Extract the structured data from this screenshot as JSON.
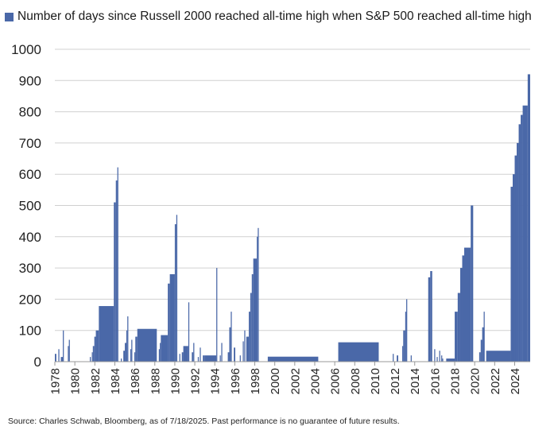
{
  "legend": {
    "label": "Number of days since Russell 2000 reached all-time high when S&P 500 reached all-time high"
  },
  "source": "Source: Charles Schwab, Bloomberg, as of 7/18/2025. Past performance is no guarantee of future results.",
  "colors": {
    "bar": "#4a68a8",
    "grid": "#d0d0d0",
    "axis": "#999999"
  },
  "chart_data": {
    "type": "area",
    "title": "",
    "series": [
      {
        "name": "Number of days since Russell 2000 reached all-time high when S&P 500 reached all-time high"
      }
    ],
    "xlabel": "",
    "ylabel": "",
    "xlim": [
      1978.0,
      2025.55
    ],
    "ylim": [
      0,
      1000
    ],
    "yticks": [
      0,
      100,
      200,
      300,
      400,
      500,
      600,
      700,
      800,
      900,
      1000
    ],
    "xtick_labels": [
      "1978",
      "1980",
      "1982",
      "1984",
      "1986",
      "1988",
      "1990",
      "1992",
      "1994",
      "1996",
      "1998",
      "2000",
      "2002",
      "2004",
      "2006",
      "2008",
      "2010",
      "2012",
      "2014",
      "2016",
      "2018",
      "2020",
      "2022",
      "2024"
    ],
    "grid": true,
    "legend_position": "top-left",
    "bars": [
      {
        "x0": 1978.0,
        "x1": 1978.15,
        "y": 25
      },
      {
        "x0": 1978.35,
        "x1": 1978.45,
        "y": 40
      },
      {
        "x0": 1978.6,
        "x1": 1978.8,
        "y": 15
      },
      {
        "x0": 1978.8,
        "x1": 1978.9,
        "y": 100
      },
      {
        "x0": 1979.3,
        "x1": 1979.4,
        "y": 50
      },
      {
        "x0": 1979.4,
        "x1": 1979.5,
        "y": 70
      },
      {
        "x0": 1981.5,
        "x1": 1981.6,
        "y": 15
      },
      {
        "x0": 1981.7,
        "x1": 1981.8,
        "y": 30
      },
      {
        "x0": 1981.8,
        "x1": 1981.95,
        "y": 50
      },
      {
        "x0": 1981.95,
        "x1": 1982.1,
        "y": 80
      },
      {
        "x0": 1982.1,
        "x1": 1982.4,
        "y": 100
      },
      {
        "x0": 1982.4,
        "x1": 1983.9,
        "y": 178
      },
      {
        "x0": 1983.9,
        "x1": 1984.1,
        "y": 510
      },
      {
        "x0": 1984.1,
        "x1": 1984.25,
        "y": 580
      },
      {
        "x0": 1984.25,
        "x1": 1984.35,
        "y": 622
      },
      {
        "x0": 1984.6,
        "x1": 1984.7,
        "y": 10
      },
      {
        "x0": 1984.85,
        "x1": 1985.0,
        "y": 35
      },
      {
        "x0": 1985.0,
        "x1": 1985.15,
        "y": 60
      },
      {
        "x0": 1985.15,
        "x1": 1985.25,
        "y": 100
      },
      {
        "x0": 1985.25,
        "x1": 1985.35,
        "y": 145
      },
      {
        "x0": 1985.55,
        "x1": 1985.65,
        "y": 40
      },
      {
        "x0": 1985.65,
        "x1": 1985.75,
        "y": 70
      },
      {
        "x0": 1985.95,
        "x1": 1986.05,
        "y": 30
      },
      {
        "x0": 1986.05,
        "x1": 1986.25,
        "y": 80
      },
      {
        "x0": 1986.25,
        "x1": 1988.2,
        "y": 105
      },
      {
        "x0": 1988.4,
        "x1": 1988.5,
        "y": 40
      },
      {
        "x0": 1988.5,
        "x1": 1988.6,
        "y": 60
      },
      {
        "x0": 1988.6,
        "x1": 1989.3,
        "y": 85
      },
      {
        "x0": 1989.3,
        "x1": 1989.5,
        "y": 250
      },
      {
        "x0": 1989.5,
        "x1": 1990.0,
        "y": 280
      },
      {
        "x0": 1990.0,
        "x1": 1990.15,
        "y": 440
      },
      {
        "x0": 1990.15,
        "x1": 1990.25,
        "y": 470
      },
      {
        "x0": 1990.45,
        "x1": 1990.55,
        "y": 25
      },
      {
        "x0": 1990.7,
        "x1": 1990.85,
        "y": 30
      },
      {
        "x0": 1990.85,
        "x1": 1991.35,
        "y": 50
      },
      {
        "x0": 1991.35,
        "x1": 1991.45,
        "y": 190
      },
      {
        "x0": 1991.7,
        "x1": 1991.85,
        "y": 30
      },
      {
        "x0": 1991.85,
        "x1": 1991.95,
        "y": 60
      },
      {
        "x0": 1992.3,
        "x1": 1992.4,
        "y": 15
      },
      {
        "x0": 1992.5,
        "x1": 1992.6,
        "y": 45
      },
      {
        "x0": 1992.8,
        "x1": 1993.0,
        "y": 20
      },
      {
        "x0": 1993.0,
        "x1": 1994.15,
        "y": 20
      },
      {
        "x0": 1994.15,
        "x1": 1994.25,
        "y": 300
      },
      {
        "x0": 1994.5,
        "x1": 1994.6,
        "y": 20
      },
      {
        "x0": 1994.65,
        "x1": 1994.75,
        "y": 60
      },
      {
        "x0": 1995.3,
        "x1": 1995.45,
        "y": 30
      },
      {
        "x0": 1995.45,
        "x1": 1995.6,
        "y": 110
      },
      {
        "x0": 1995.6,
        "x1": 1995.7,
        "y": 160
      },
      {
        "x0": 1995.9,
        "x1": 1996.05,
        "y": 45
      },
      {
        "x0": 1996.5,
        "x1": 1996.6,
        "y": 20
      },
      {
        "x0": 1996.8,
        "x1": 1996.9,
        "y": 65
      },
      {
        "x0": 1996.95,
        "x1": 1997.05,
        "y": 100
      },
      {
        "x0": 1997.15,
        "x1": 1997.4,
        "y": 80
      },
      {
        "x0": 1997.4,
        "x1": 1997.55,
        "y": 160
      },
      {
        "x0": 1997.55,
        "x1": 1997.7,
        "y": 220
      },
      {
        "x0": 1997.7,
        "x1": 1997.85,
        "y": 280
      },
      {
        "x0": 1997.85,
        "x1": 1998.2,
        "y": 330
      },
      {
        "x0": 1998.2,
        "x1": 1998.3,
        "y": 400
      },
      {
        "x0": 1998.3,
        "x1": 1998.4,
        "y": 428
      },
      {
        "x0": 1999.3,
        "x1": 2004.35,
        "y": 16
      },
      {
        "x0": 2006.35,
        "x1": 2010.4,
        "y": 62
      },
      {
        "x0": 2011.8,
        "x1": 2011.9,
        "y": 25
      },
      {
        "x0": 2012.2,
        "x1": 2012.35,
        "y": 20
      },
      {
        "x0": 2012.75,
        "x1": 2012.85,
        "y": 50
      },
      {
        "x0": 2012.85,
        "x1": 2013.05,
        "y": 100
      },
      {
        "x0": 2013.05,
        "x1": 2013.15,
        "y": 160
      },
      {
        "x0": 2013.15,
        "x1": 2013.25,
        "y": 200
      },
      {
        "x0": 2013.6,
        "x1": 2013.7,
        "y": 20
      },
      {
        "x0": 2015.35,
        "x1": 2015.55,
        "y": 270
      },
      {
        "x0": 2015.55,
        "x1": 2015.75,
        "y": 290
      },
      {
        "x0": 2015.95,
        "x1": 2016.05,
        "y": 40
      },
      {
        "x0": 2016.2,
        "x1": 2016.3,
        "y": 15
      },
      {
        "x0": 2016.45,
        "x1": 2016.55,
        "y": 35
      },
      {
        "x0": 2016.65,
        "x1": 2016.75,
        "y": 20
      },
      {
        "x0": 2016.75,
        "x1": 2016.85,
        "y": 10
      },
      {
        "x0": 2017.15,
        "x1": 2018.0,
        "y": 10
      },
      {
        "x0": 2018.0,
        "x1": 2018.3,
        "y": 160
      },
      {
        "x0": 2018.3,
        "x1": 2018.55,
        "y": 220
      },
      {
        "x0": 2018.55,
        "x1": 2018.75,
        "y": 300
      },
      {
        "x0": 2018.75,
        "x1": 2018.95,
        "y": 340
      },
      {
        "x0": 2018.95,
        "x1": 2019.6,
        "y": 365
      },
      {
        "x0": 2019.6,
        "x1": 2019.85,
        "y": 500
      },
      {
        "x0": 2020.45,
        "x1": 2020.6,
        "y": 30
      },
      {
        "x0": 2020.6,
        "x1": 2020.75,
        "y": 70
      },
      {
        "x0": 2020.75,
        "x1": 2020.9,
        "y": 110
      },
      {
        "x0": 2020.9,
        "x1": 2021.0,
        "y": 160
      },
      {
        "x0": 2021.15,
        "x1": 2023.6,
        "y": 35
      },
      {
        "x0": 2023.6,
        "x1": 2023.8,
        "y": 560
      },
      {
        "x0": 2023.8,
        "x1": 2024.0,
        "y": 600
      },
      {
        "x0": 2024.0,
        "x1": 2024.2,
        "y": 660
      },
      {
        "x0": 2024.2,
        "x1": 2024.4,
        "y": 700
      },
      {
        "x0": 2024.4,
        "x1": 2024.6,
        "y": 760
      },
      {
        "x0": 2024.6,
        "x1": 2024.8,
        "y": 790
      },
      {
        "x0": 2024.8,
        "x1": 2025.3,
        "y": 820
      },
      {
        "x0": 2025.3,
        "x1": 2025.55,
        "y": 920
      }
    ]
  }
}
